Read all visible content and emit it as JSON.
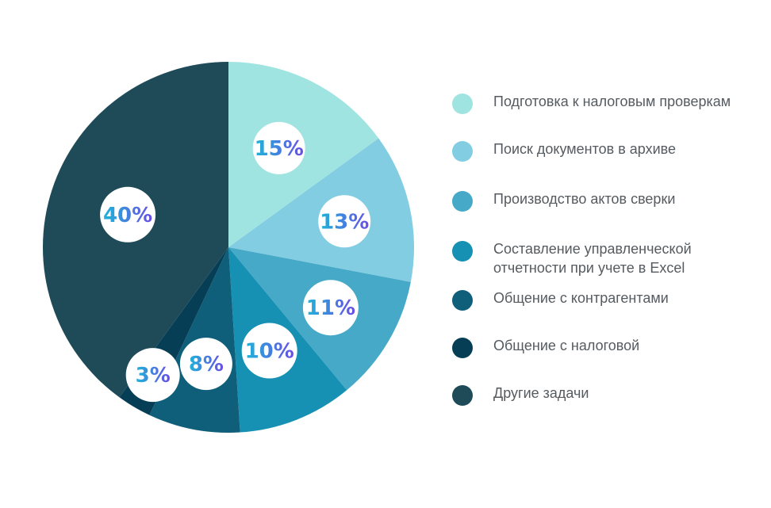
{
  "chart_data": {
    "type": "pie",
    "start_angle_deg": 0,
    "direction": "clockwise",
    "slices": [
      {
        "label": "Подготовка к налоговым проверкам",
        "value": 15,
        "display": "15%",
        "color": "#a0e4e2"
      },
      {
        "label": "Поиск документов в архиве",
        "value": 13,
        "display": "13%",
        "color": "#82cde2"
      },
      {
        "label": "Производство актов сверки",
        "value": 11,
        "display": "11%",
        "color": "#46a9c8"
      },
      {
        "label": "Составление управленческой отчетности при учете в Excel",
        "value": 10,
        "display": "10%",
        "color": "#1690b3"
      },
      {
        "label": "Общение с контрагентами",
        "value": 8,
        "display": "8%",
        "color": "#0f5f7b"
      },
      {
        "label": "Общение с налоговой",
        "value": 3,
        "display": "3%",
        "color": "#063f55"
      },
      {
        "label": "Другие задачи",
        "value": 40,
        "display": "40%",
        "color": "#1f4b59"
      }
    ],
    "legend_position": "right",
    "label_gradient": [
      "#1eb4d8",
      "#6a4de6"
    ]
  }
}
